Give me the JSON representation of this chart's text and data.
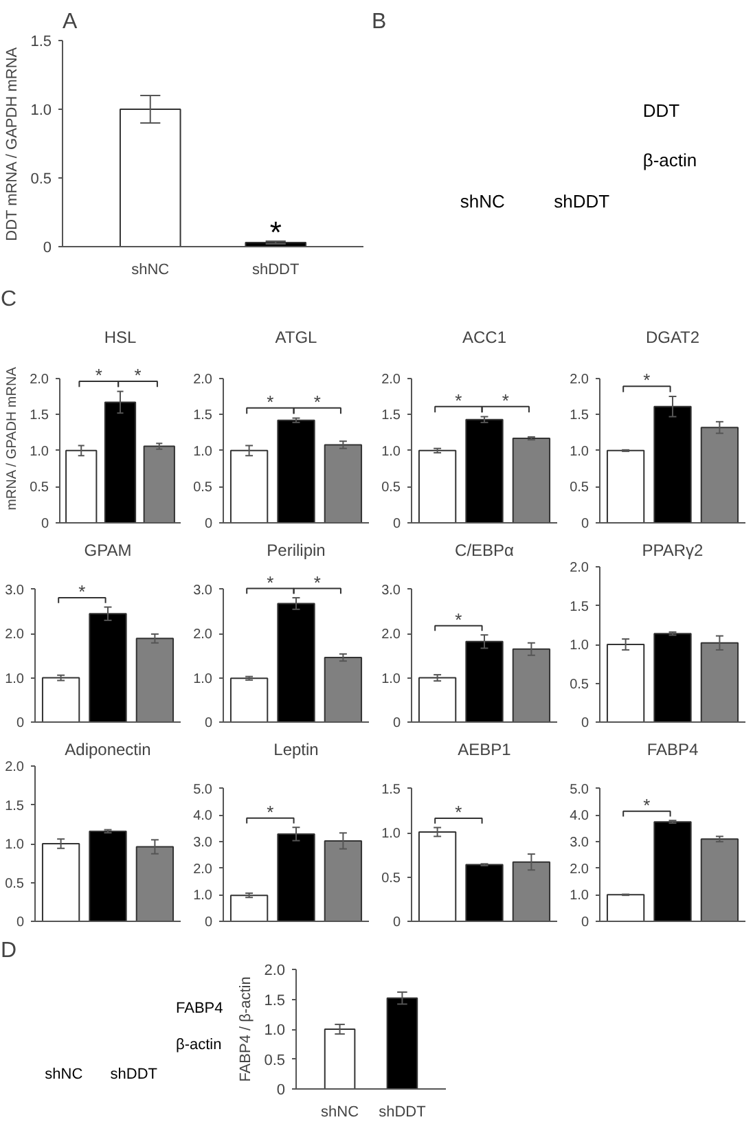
{
  "chart_data": [
    {
      "type": "bar",
      "title": "A",
      "ylabel": "DDT mRNA / GAPDH mRNA",
      "categories": [
        "shNC",
        "shDDT"
      ],
      "values": [
        1.0,
        0.03
      ],
      "errors": [
        0.1,
        0.01
      ],
      "colors": [
        "#ffffff",
        "#000000"
      ],
      "value_labels": [
        null,
        "*"
      ],
      "ylim": [
        0,
        1.5
      ],
      "yticks": [
        0,
        0.5,
        {
          "value": 1,
          "label": "1.0"
        },
        1.5
      ]
    },
    {
      "type": "other",
      "title": "B",
      "annotations": [
        "DDT",
        "β-actin"
      ],
      "categories": [
        "shNC",
        "shDDT"
      ]
    },
    {
      "type": "other",
      "title": "C"
    },
    {
      "type": "bar",
      "annotations": [
        "*",
        "*"
      ],
      "title": "HSL",
      "ylabel": "mRNA / GPADH mRNA",
      "categories": [
        null,
        null,
        null
      ],
      "values": [
        1.0,
        1.67,
        1.06
      ],
      "errors": [
        0.07,
        0.15,
        0.04
      ],
      "colors": [
        "#ffffff",
        "#000000",
        "#808080"
      ],
      "ylim": [
        0,
        2
      ],
      "yticks": [
        0,
        0.5,
        {
          "value": 1,
          "label": "1.0"
        },
        1.5,
        {
          "value": 2,
          "label": "2.0"
        }
      ],
      "tick_labels": "y"
    },
    {
      "type": "bar",
      "annotations": [
        "*",
        "*"
      ],
      "title": "ATGL",
      "categories": [
        null,
        null,
        null
      ],
      "values": [
        1.0,
        1.42,
        1.08
      ],
      "errors": [
        0.07,
        0.03,
        0.05
      ],
      "colors": [
        "#ffffff",
        "#000000",
        "#808080"
      ],
      "ylim": [
        0,
        2
      ],
      "yticks": [
        0,
        0.5,
        {
          "value": 1,
          "label": "1.0"
        },
        1.5,
        {
          "value": 2,
          "label": "2.0"
        }
      ],
      "tick_labels": "y"
    },
    {
      "type": "bar",
      "annotations": [
        "*",
        "*"
      ],
      "title": "ACC1",
      "categories": [
        null,
        null,
        null
      ],
      "values": [
        1.0,
        1.43,
        1.17
      ],
      "errors": [
        0.03,
        0.04,
        0.02
      ],
      "colors": [
        "#ffffff",
        "#000000",
        "#808080"
      ],
      "ylim": [
        0,
        2
      ],
      "yticks": [
        0,
        0.5,
        {
          "value": 1,
          "label": "1.0"
        },
        1.5,
        {
          "value": 2,
          "label": "2.0"
        }
      ],
      "tick_labels": "y"
    },
    {
      "type": "bar",
      "annotations": [
        "*"
      ],
      "title": "DGAT2",
      "categories": [
        null,
        null,
        null
      ],
      "values": [
        1.0,
        1.61,
        1.32
      ],
      "errors": [
        0.01,
        0.14,
        0.08
      ],
      "colors": [
        "#ffffff",
        "#000000",
        "#808080"
      ],
      "ylim": [
        0,
        2
      ],
      "yticks": [
        0,
        0.5,
        {
          "value": 1,
          "label": "1.0"
        },
        1.5,
        {
          "value": 2,
          "label": "2.0"
        }
      ],
      "tick_labels": "y"
    },
    {
      "type": "bar",
      "annotations": [
        "*"
      ],
      "title": "GPAM",
      "categories": [
        null,
        null,
        null
      ],
      "values": [
        1.0,
        2.45,
        1.89
      ],
      "errors": [
        0.06,
        0.15,
        0.1
      ],
      "colors": [
        "#ffffff",
        "#000000",
        "#808080"
      ],
      "ylim": [
        0,
        3
      ],
      "yticks": [
        0,
        {
          "value": 1,
          "label": "1.0"
        },
        {
          "value": 2,
          "label": "2.0"
        },
        {
          "value": 3,
          "label": "3.0"
        }
      ],
      "tick_labels": "y"
    },
    {
      "type": "bar",
      "annotations": [
        "*",
        "*"
      ],
      "title": "Perilipin",
      "categories": [
        null,
        null,
        null
      ],
      "values": [
        0.99,
        2.68,
        1.46
      ],
      "errors": [
        0.04,
        0.13,
        0.08
      ],
      "colors": [
        "#ffffff",
        "#000000",
        "#808080"
      ],
      "ylim": [
        0,
        3
      ],
      "yticks": [
        0,
        {
          "value": 1,
          "label": "1.0"
        },
        {
          "value": 2,
          "label": "2.0"
        },
        {
          "value": 3,
          "label": "3.0"
        }
      ],
      "tick_labels": "y"
    },
    {
      "type": "bar",
      "annotations": [
        "*"
      ],
      "title": "C/EBPα",
      "categories": [
        null,
        null,
        null
      ],
      "values": [
        1.0,
        1.82,
        1.65
      ],
      "errors": [
        0.07,
        0.15,
        0.14
      ],
      "colors": [
        "#ffffff",
        "#000000",
        "#808080"
      ],
      "ylim": [
        0,
        3
      ],
      "yticks": [
        0,
        {
          "value": 1,
          "label": "1.0"
        },
        {
          "value": 2,
          "label": "2.0"
        },
        {
          "value": 3,
          "label": "3.0"
        }
      ],
      "tick_labels": "y"
    },
    {
      "type": "bar",
      "title": "PPARγ2",
      "categories": [
        null,
        null,
        null
      ],
      "values": [
        1.0,
        1.14,
        1.02
      ],
      "errors": [
        0.07,
        0.02,
        0.09
      ],
      "colors": [
        "#ffffff",
        "#000000",
        "#808080"
      ],
      "ylim": [
        0,
        2
      ],
      "yticks": [
        0,
        0.5,
        {
          "value": 1,
          "label": "1.0"
        },
        1.5,
        {
          "value": 2,
          "label": "2.0"
        }
      ],
      "tick_labels": "y"
    },
    {
      "type": "bar",
      "title": "Adiponectin",
      "categories": [
        null,
        null,
        null
      ],
      "values": [
        1.0,
        1.16,
        0.96
      ],
      "errors": [
        0.06,
        0.02,
        0.09
      ],
      "colors": [
        "#ffffff",
        "#000000",
        "#808080"
      ],
      "ylim": [
        0,
        2
      ],
      "yticks": [
        0,
        0.5,
        {
          "value": 1,
          "label": "1.0"
        },
        1.5,
        {
          "value": 2,
          "label": "2.0"
        }
      ],
      "tick_labels": "y"
    },
    {
      "type": "bar",
      "annotations": [
        "*"
      ],
      "title": "Leptin",
      "categories": [
        null,
        null,
        null
      ],
      "values": [
        0.98,
        3.29,
        3.03
      ],
      "errors": [
        0.08,
        0.25,
        0.3
      ],
      "colors": [
        "#ffffff",
        "#000000",
        "#808080"
      ],
      "ylim": [
        0,
        5
      ],
      "yticks": [
        0,
        {
          "value": 1,
          "label": "1.0"
        },
        {
          "value": 2,
          "label": "2.0"
        },
        {
          "value": 3,
          "label": "3.0"
        },
        {
          "value": 4,
          "label": "4.0"
        },
        {
          "value": 5,
          "label": "5.0"
        }
      ],
      "tick_labels": "y"
    },
    {
      "type": "bar",
      "annotations": [
        "*"
      ],
      "title": "AEBP1",
      "categories": [
        null,
        null,
        null
      ],
      "values": [
        1.01,
        0.64,
        0.67
      ],
      "errors": [
        0.05,
        0.01,
        0.09
      ],
      "colors": [
        "#ffffff",
        "#000000",
        "#808080"
      ],
      "ylim": [
        0,
        1.5
      ],
      "yticks": [
        0,
        0.5,
        {
          "value": 1,
          "label": "1.0"
        },
        1.5
      ],
      "tick_labels": "y"
    },
    {
      "type": "bar",
      "annotations": [
        "*"
      ],
      "title": "FABP4",
      "categories": [
        null,
        null,
        null
      ],
      "values": [
        1.0,
        3.75,
        3.1
      ],
      "errors": [
        0.02,
        0.05,
        0.1
      ],
      "colors": [
        "#ffffff",
        "#000000",
        "#808080"
      ],
      "ylim": [
        0,
        5
      ],
      "yticks": [
        0,
        {
          "value": 1,
          "label": "1.0"
        },
        {
          "value": 2,
          "label": "2.0"
        },
        {
          "value": 3,
          "label": "3.0"
        },
        {
          "value": 4,
          "label": "4.0"
        },
        {
          "value": 5,
          "label": "5.0"
        }
      ],
      "tick_labels": "y"
    },
    {
      "type": "other",
      "title": "D",
      "annotations": [
        "FABP4",
        "β-actin"
      ],
      "categories": [
        "shNC",
        "shDDT"
      ]
    },
    {
      "type": "bar",
      "ylabel": "FABP4 / β-actin",
      "categories": [
        "shNC",
        "shDDT"
      ],
      "values": [
        1.0,
        1.52
      ],
      "errors": [
        0.08,
        0.1
      ],
      "colors": [
        "#ffffff",
        "#000000"
      ],
      "ylim": [
        0,
        2
      ],
      "yticks": [
        0,
        0.5,
        {
          "value": 1,
          "label": "1.0"
        },
        1.5,
        {
          "value": 2,
          "label": "2.0"
        }
      ]
    }
  ]
}
